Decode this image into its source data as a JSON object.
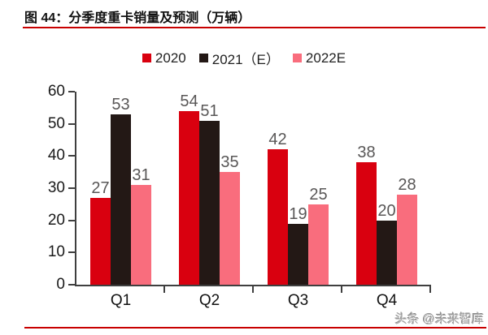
{
  "header": {
    "title": "图 44：分季度重卡销量及预测（万辆）"
  },
  "footer": {
    "watermark": "头条 @未来智库"
  },
  "colors": {
    "rule_red": "#c80000",
    "axis": "#3f3f3f",
    "data_label_gray": "#595757",
    "bar_2020": "#d9000f",
    "bar_2021e": "#231815",
    "bar_2022e": "#f96d7d"
  },
  "chart_data": {
    "type": "bar",
    "title": "分季度重卡销量及预测（万辆）",
    "categories": [
      "Q1",
      "Q2",
      "Q3",
      "Q4"
    ],
    "series": [
      {
        "name": "2020",
        "color": "#d9000f",
        "values": [
          27,
          54,
          42,
          38
        ]
      },
      {
        "name": "2021（E）",
        "color": "#231815",
        "values": [
          53,
          51,
          19,
          20
        ]
      },
      {
        "name": "2022E",
        "color": "#f96d7d",
        "values": [
          31,
          35,
          25,
          28
        ]
      }
    ],
    "xlabel": "",
    "ylabel": "",
    "ylim": [
      0,
      60
    ],
    "yticks": [
      0,
      10,
      20,
      30,
      40,
      50,
      60
    ],
    "grid": false,
    "legend_position": "top",
    "data_labels": true
  }
}
